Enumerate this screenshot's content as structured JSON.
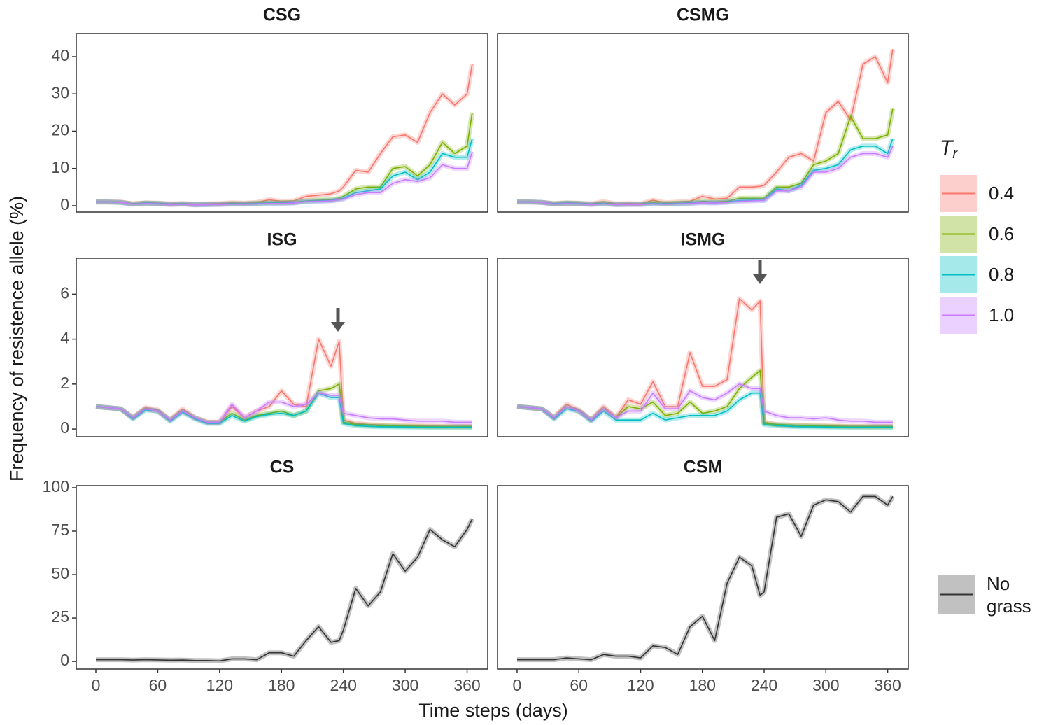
{
  "y_label": "Frequency of resistence allele (%)",
  "x_label": "Time steps (days)",
  "legends": [
    {
      "title": "T",
      "title_sub": "r",
      "entries": [
        {
          "name": "0.4",
          "color": "#F8766D"
        },
        {
          "name": "0.6",
          "color": "#7CAE00"
        },
        {
          "name": "0.8",
          "color": "#00BFC4"
        },
        {
          "name": "1.0",
          "color": "#C77CFF"
        }
      ]
    },
    {
      "entries": [
        {
          "name": "No grass",
          "color": "#333333"
        }
      ]
    }
  ],
  "chart_data": [
    {
      "type": "line",
      "title": "CSG",
      "x": [
        0,
        12,
        24,
        36,
        48,
        60,
        72,
        84,
        96,
        108,
        120,
        132,
        144,
        156,
        168,
        180,
        192,
        204,
        216,
        228,
        236,
        240,
        252,
        264,
        276,
        288,
        300,
        312,
        324,
        336,
        348,
        360,
        365
      ],
      "xlim": [
        -19,
        380
      ],
      "ylim": [
        -1.7,
        46.2
      ],
      "yticks": [
        0,
        10,
        20,
        30,
        40
      ],
      "series": [
        {
          "color": "#F8766D",
          "values": [
            1,
            1,
            1,
            0.5,
            0.8,
            0.7,
            0.5,
            0.6,
            0.4,
            0.5,
            0.6,
            0.8,
            0.7,
            0.9,
            1.6,
            1.2,
            1.3,
            2.5,
            2.8,
            3.2,
            4,
            5,
            9.5,
            9,
            14,
            18.5,
            19,
            17,
            25,
            30,
            27,
            30,
            38
          ]
        },
        {
          "color": "#7CAE00",
          "values": [
            1,
            1,
            0.9,
            0.5,
            0.7,
            0.6,
            0.4,
            0.5,
            0.3,
            0.4,
            0.4,
            0.6,
            0.5,
            0.7,
            0.8,
            0.8,
            0.9,
            1.3,
            1.5,
            1.6,
            2,
            2.5,
            4.5,
            5,
            5,
            10,
            10.5,
            8,
            11,
            17,
            14,
            16,
            25
          ]
        },
        {
          "color": "#00BFC4",
          "values": [
            1,
            1,
            0.9,
            0.4,
            0.7,
            0.6,
            0.4,
            0.5,
            0.3,
            0.3,
            0.4,
            0.5,
            0.5,
            0.6,
            0.7,
            0.7,
            0.8,
            1.2,
            1.3,
            1.4,
            1.7,
            2,
            3.5,
            4,
            4.5,
            8,
            9,
            7,
            9,
            14,
            13,
            13,
            18
          ]
        },
        {
          "color": "#C77CFF",
          "values": [
            1,
            1,
            0.9,
            0.4,
            0.6,
            0.5,
            0.3,
            0.4,
            0.2,
            0.3,
            0.3,
            0.4,
            0.4,
            0.5,
            0.6,
            0.6,
            0.7,
            1.1,
            1.2,
            1.3,
            1.6,
            1.8,
            3,
            3.5,
            3.5,
            6,
            7,
            6.5,
            7.5,
            11,
            10,
            10,
            14.5
          ]
        }
      ]
    },
    {
      "type": "line",
      "title": "CSMG",
      "x": [
        0,
        12,
        24,
        36,
        48,
        60,
        72,
        84,
        96,
        108,
        120,
        132,
        144,
        156,
        168,
        180,
        192,
        204,
        216,
        228,
        236,
        240,
        252,
        264,
        276,
        288,
        300,
        312,
        324,
        336,
        348,
        360,
        365
      ],
      "xlim": [
        -19,
        380
      ],
      "ylim": [
        -1.7,
        46.2
      ],
      "series": [
        {
          "color": "#F8766D",
          "values": [
            1,
            1,
            0.9,
            0.6,
            0.8,
            0.7,
            0.5,
            1.1,
            0.5,
            0.6,
            0.5,
            1.5,
            0.8,
            1,
            1.2,
            2.5,
            1.8,
            2,
            5,
            5,
            5.2,
            5.5,
            9,
            13,
            14,
            12,
            25,
            28,
            23,
            38,
            40,
            33,
            42
          ]
        },
        {
          "color": "#7CAE00",
          "values": [
            1,
            1,
            0.9,
            0.5,
            0.7,
            0.6,
            0.4,
            0.7,
            0.4,
            0.4,
            0.4,
            0.8,
            0.6,
            0.7,
            0.8,
            1.2,
            1,
            1.2,
            2,
            2,
            2,
            2,
            5,
            5,
            6,
            11,
            12,
            14,
            24,
            18,
            18,
            19,
            26
          ]
        },
        {
          "color": "#00BFC4",
          "values": [
            1,
            1,
            0.9,
            0.5,
            0.7,
            0.6,
            0.4,
            0.6,
            0.3,
            0.4,
            0.4,
            0.6,
            0.5,
            0.6,
            0.7,
            0.9,
            0.8,
            1,
            1.4,
            1.5,
            1.5,
            1.5,
            4.5,
            4,
            5.5,
            9.5,
            10,
            11,
            15,
            16,
            16,
            14,
            18
          ]
        },
        {
          "color": "#C77CFF",
          "values": [
            1,
            1,
            0.9,
            0.4,
            0.6,
            0.5,
            0.3,
            0.5,
            0.3,
            0.3,
            0.3,
            0.5,
            0.4,
            0.5,
            0.6,
            0.8,
            0.7,
            0.9,
            1.2,
            1.3,
            1.4,
            1.4,
            4,
            4,
            5,
            9,
            9,
            10,
            13,
            14,
            14,
            13,
            16
          ]
        }
      ]
    },
    {
      "type": "line",
      "title": "ISG",
      "x": [
        0,
        12,
        24,
        36,
        48,
        60,
        72,
        84,
        96,
        108,
        120,
        132,
        144,
        156,
        168,
        180,
        192,
        204,
        216,
        228,
        236,
        240,
        252,
        264,
        276,
        288,
        300,
        312,
        324,
        336,
        348,
        360,
        365
      ],
      "xlim": [
        -19,
        380
      ],
      "ylim": [
        -0.34,
        7.6
      ],
      "yticks": [
        0,
        2,
        4,
        6
      ],
      "series": [
        {
          "color": "#F8766D",
          "values": [
            1,
            0.95,
            0.9,
            0.5,
            0.95,
            0.85,
            0.4,
            0.9,
            0.5,
            0.3,
            0.3,
            1.0,
            0.5,
            0.8,
            1.0,
            1.7,
            1.1,
            1.0,
            4.0,
            2.8,
            3.9,
            0.4,
            0.25,
            0.2,
            0.18,
            0.16,
            0.15,
            0.14,
            0.13,
            0.12,
            0.12,
            0.12,
            0.12
          ]
        },
        {
          "color": "#7CAE00",
          "values": [
            1,
            0.95,
            0.9,
            0.5,
            0.9,
            0.8,
            0.4,
            0.8,
            0.5,
            0.3,
            0.3,
            0.7,
            0.4,
            0.6,
            0.7,
            0.8,
            0.6,
            0.8,
            1.7,
            1.8,
            2.0,
            0.3,
            0.2,
            0.18,
            0.15,
            0.13,
            0.12,
            0.11,
            0.1,
            0.1,
            0.1,
            0.1,
            0.1
          ]
        },
        {
          "color": "#00BFC4",
          "values": [
            1,
            0.95,
            0.9,
            0.45,
            0.85,
            0.8,
            0.35,
            0.75,
            0.45,
            0.25,
            0.25,
            0.6,
            0.35,
            0.55,
            0.65,
            0.7,
            0.6,
            0.8,
            1.6,
            1.4,
            1.4,
            0.25,
            0.15,
            0.12,
            0.1,
            0.1,
            0.09,
            0.08,
            0.08,
            0.08,
            0.08,
            0.08,
            0.08
          ]
        },
        {
          "color": "#C77CFF",
          "values": [
            1,
            0.95,
            0.9,
            0.5,
            0.9,
            0.8,
            0.4,
            0.8,
            0.5,
            0.3,
            0.3,
            1.1,
            0.5,
            0.8,
            1.2,
            1.2,
            1.0,
            1.1,
            1.6,
            1.5,
            1.5,
            0.7,
            0.6,
            0.5,
            0.45,
            0.45,
            0.4,
            0.35,
            0.35,
            0.35,
            0.3,
            0.3,
            0.3
          ]
        }
      ]
    },
    {
      "type": "line",
      "title": "ISMG",
      "x": [
        0,
        12,
        24,
        36,
        48,
        60,
        72,
        84,
        96,
        108,
        120,
        132,
        144,
        156,
        168,
        180,
        192,
        204,
        216,
        228,
        236,
        240,
        252,
        264,
        276,
        288,
        300,
        312,
        324,
        336,
        348,
        360,
        365
      ],
      "xlim": [
        -19,
        380
      ],
      "ylim": [
        -0.34,
        7.6
      ],
      "series": [
        {
          "color": "#F8766D",
          "values": [
            1,
            0.95,
            0.9,
            0.5,
            1.1,
            0.85,
            0.4,
            1.0,
            0.5,
            1.3,
            1.1,
            2.1,
            1.0,
            1.0,
            3.4,
            1.9,
            1.9,
            2.2,
            5.8,
            5.3,
            5.7,
            0.3,
            0.2,
            0.18,
            0.16,
            0.15,
            0.14,
            0.13,
            0.12,
            0.12,
            0.12,
            0.12,
            0.12
          ]
        },
        {
          "color": "#7CAE00",
          "values": [
            1,
            0.95,
            0.9,
            0.5,
            1.0,
            0.8,
            0.4,
            0.9,
            0.5,
            1.0,
            0.9,
            1.2,
            0.6,
            0.7,
            1.2,
            0.7,
            0.8,
            1.0,
            1.8,
            2.3,
            2.6,
            0.25,
            0.2,
            0.18,
            0.15,
            0.13,
            0.12,
            0.11,
            0.1,
            0.1,
            0.1,
            0.1,
            0.1
          ]
        },
        {
          "color": "#00BFC4",
          "values": [
            1,
            0.95,
            0.9,
            0.45,
            0.9,
            0.8,
            0.35,
            0.8,
            0.4,
            0.4,
            0.4,
            0.7,
            0.4,
            0.5,
            0.6,
            0.6,
            0.6,
            0.8,
            1.3,
            1.6,
            1.6,
            0.2,
            0.15,
            0.12,
            0.1,
            0.1,
            0.09,
            0.08,
            0.08,
            0.08,
            0.08,
            0.08,
            0.08
          ]
        },
        {
          "color": "#C77CFF",
          "values": [
            1,
            0.95,
            0.9,
            0.5,
            1.0,
            0.8,
            0.4,
            0.9,
            0.5,
            0.8,
            0.8,
            1.6,
            0.9,
            0.9,
            1.7,
            1.4,
            1.3,
            1.6,
            2.0,
            1.8,
            1.8,
            0.8,
            0.6,
            0.5,
            0.5,
            0.45,
            0.5,
            0.4,
            0.35,
            0.35,
            0.3,
            0.3,
            0.3
          ]
        }
      ]
    },
    {
      "type": "line",
      "title": "CS",
      "x": [
        0,
        12,
        24,
        36,
        48,
        60,
        72,
        84,
        96,
        108,
        120,
        132,
        144,
        156,
        168,
        180,
        192,
        204,
        216,
        228,
        236,
        240,
        252,
        264,
        276,
        288,
        300,
        312,
        324,
        336,
        348,
        360,
        365
      ],
      "xlim": [
        -19,
        380
      ],
      "ylim": [
        -4.4,
        101.2
      ],
      "yticks": [
        0,
        25,
        50,
        75,
        100
      ],
      "xticks": [
        0,
        60,
        120,
        180,
        240,
        300,
        360
      ],
      "series": [
        {
          "color": "#333333",
          "values": [
            1,
            1,
            1,
            0.8,
            1,
            0.9,
            0.7,
            0.8,
            0.5,
            0.5,
            0.3,
            1.5,
            1.5,
            1,
            5,
            5,
            3,
            12,
            20,
            11,
            12,
            18,
            42,
            32,
            40,
            62,
            52,
            60,
            76,
            70,
            66,
            76,
            82
          ]
        }
      ]
    },
    {
      "type": "line",
      "title": "CSM",
      "x": [
        0,
        12,
        24,
        36,
        48,
        60,
        72,
        84,
        96,
        108,
        120,
        132,
        144,
        156,
        168,
        180,
        192,
        204,
        216,
        228,
        236,
        240,
        252,
        264,
        276,
        288,
        300,
        312,
        324,
        336,
        348,
        360,
        365
      ],
      "xlim": [
        -19,
        380
      ],
      "ylim": [
        -4.4,
        101.2
      ],
      "xticks": [
        0,
        60,
        120,
        180,
        240,
        300,
        360
      ],
      "series": [
        {
          "color": "#333333",
          "values": [
            1,
            1,
            1,
            1,
            2,
            1.5,
            1,
            4,
            3,
            3,
            2,
            9,
            8,
            4,
            20,
            26,
            12,
            45,
            60,
            55,
            38,
            40,
            83,
            85,
            72,
            90,
            93,
            92,
            86,
            95,
            95,
            90,
            95
          ]
        }
      ]
    }
  ]
}
